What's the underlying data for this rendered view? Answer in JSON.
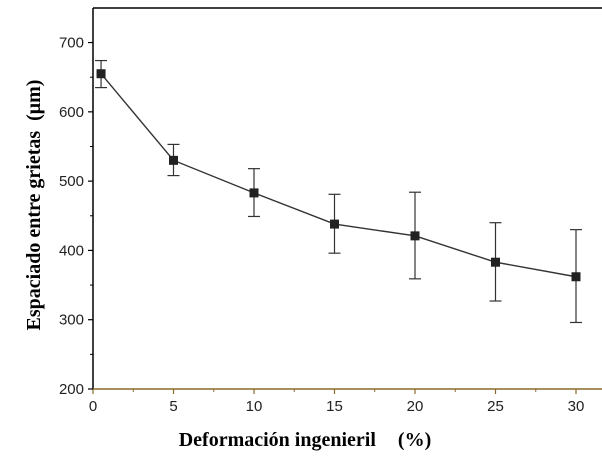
{
  "chart_data": {
    "type": "line",
    "title": "",
    "xlabel": "Deformación ingenieril",
    "xlabel_unit": "(%)",
    "ylabel": "Espaciado entre grietas",
    "ylabel_unit": "(μm)",
    "xlim": [
      0,
      31.5
    ],
    "ylim": [
      200,
      750
    ],
    "x_ticks": [
      0,
      5,
      10,
      15,
      20,
      25,
      30
    ],
    "y_ticks": [
      200,
      300,
      400,
      500,
      600,
      700
    ],
    "grid": false,
    "legend": "none",
    "series": [
      {
        "x": [
          0.5,
          5,
          10,
          15,
          20,
          25,
          30
        ],
        "y": [
          655,
          530,
          483,
          438,
          421,
          383,
          362
        ],
        "err_low": [
          635,
          508,
          449,
          396,
          359,
          327,
          296
        ],
        "err_high": [
          674,
          553,
          518,
          481,
          484,
          440,
          430
        ],
        "marker": "square",
        "color": "#222222"
      }
    ]
  }
}
